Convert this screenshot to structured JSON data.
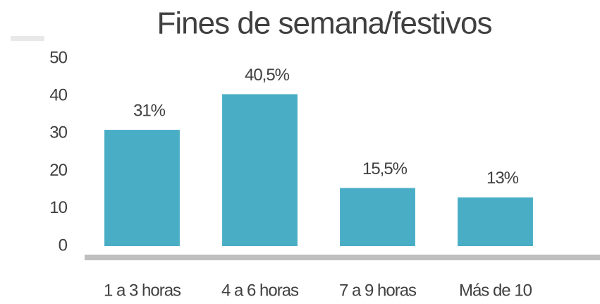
{
  "chart_data": {
    "type": "bar",
    "title": "Fines de semana/festivos",
    "categories": [
      "1 a 3 horas",
      "4 a 6 horas",
      "7 a 9 horas",
      "Más de 10"
    ],
    "values": [
      31,
      40.5,
      15.5,
      13
    ],
    "value_labels": [
      "31%",
      "40,5%",
      "15,5%",
      "13%"
    ],
    "color": "#4aadc6",
    "ylim": [
      0,
      50
    ],
    "yticks": [
      0,
      10,
      20,
      30,
      40,
      50
    ],
    "grid": false
  }
}
